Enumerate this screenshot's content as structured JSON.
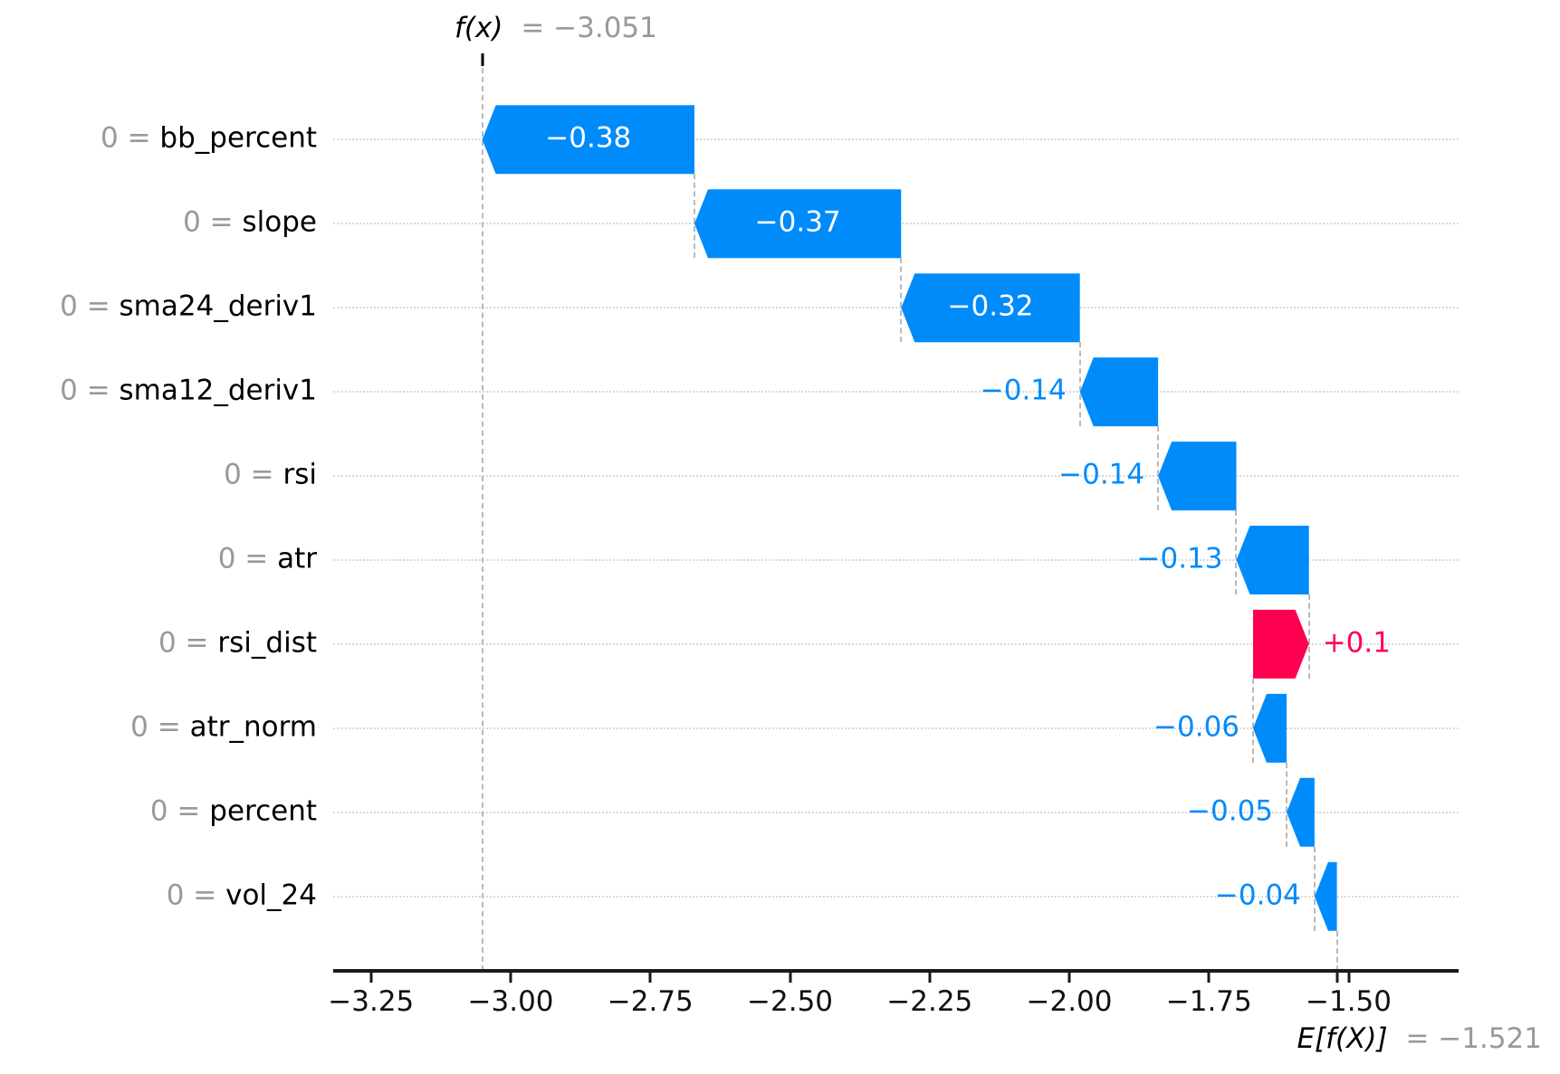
{
  "title": {
    "fx_label": "f(x)",
    "fx_value": "= −3.051"
  },
  "base_label": {
    "e_label": "E[f(X)]",
    "e_value": "= −1.521"
  },
  "chart_data": {
    "type": "bar",
    "subtype": "shap-waterfall",
    "features": [
      "bb_percent",
      "slope",
      "sma24_deriv1",
      "sma12_deriv1",
      "rsi",
      "atr",
      "rsi_dist",
      "atr_norm",
      "percent",
      "vol_24"
    ],
    "feature_values": [
      "0",
      "0",
      "0",
      "0",
      "0",
      "0",
      "0",
      "0",
      "0",
      "0"
    ],
    "shap_values": [
      -0.38,
      -0.37,
      -0.32,
      -0.14,
      -0.14,
      -0.13,
      0.1,
      -0.06,
      -0.05,
      -0.04
    ],
    "value_labels": [
      "−0.38",
      "−0.37",
      "−0.32",
      "−0.14",
      "−0.14",
      "−0.13",
      "+0.1",
      "−0.06",
      "−0.05",
      "−0.04"
    ],
    "fx": -3.051,
    "base_value": -1.521,
    "x_ticks": [
      -3.25,
      -3.0,
      -2.75,
      -2.5,
      -2.25,
      -2.0,
      -1.75,
      -1.5
    ],
    "x_tick_labels": [
      "−3.25",
      "−3.00",
      "−2.75",
      "−2.50",
      "−2.25",
      "−2.00",
      "−1.75",
      "−1.50"
    ],
    "xlim": [
      -3.3177,
      -1.3031
    ],
    "grid": "dotted-horizontal",
    "legend": "none",
    "colors": {
      "negative": "#008bfb",
      "positive": "#ff0051",
      "label_gray": "#999999",
      "gridline": "#d8d8d8",
      "connector": "#b9b9b9",
      "axis": "#1a1a1a"
    }
  }
}
